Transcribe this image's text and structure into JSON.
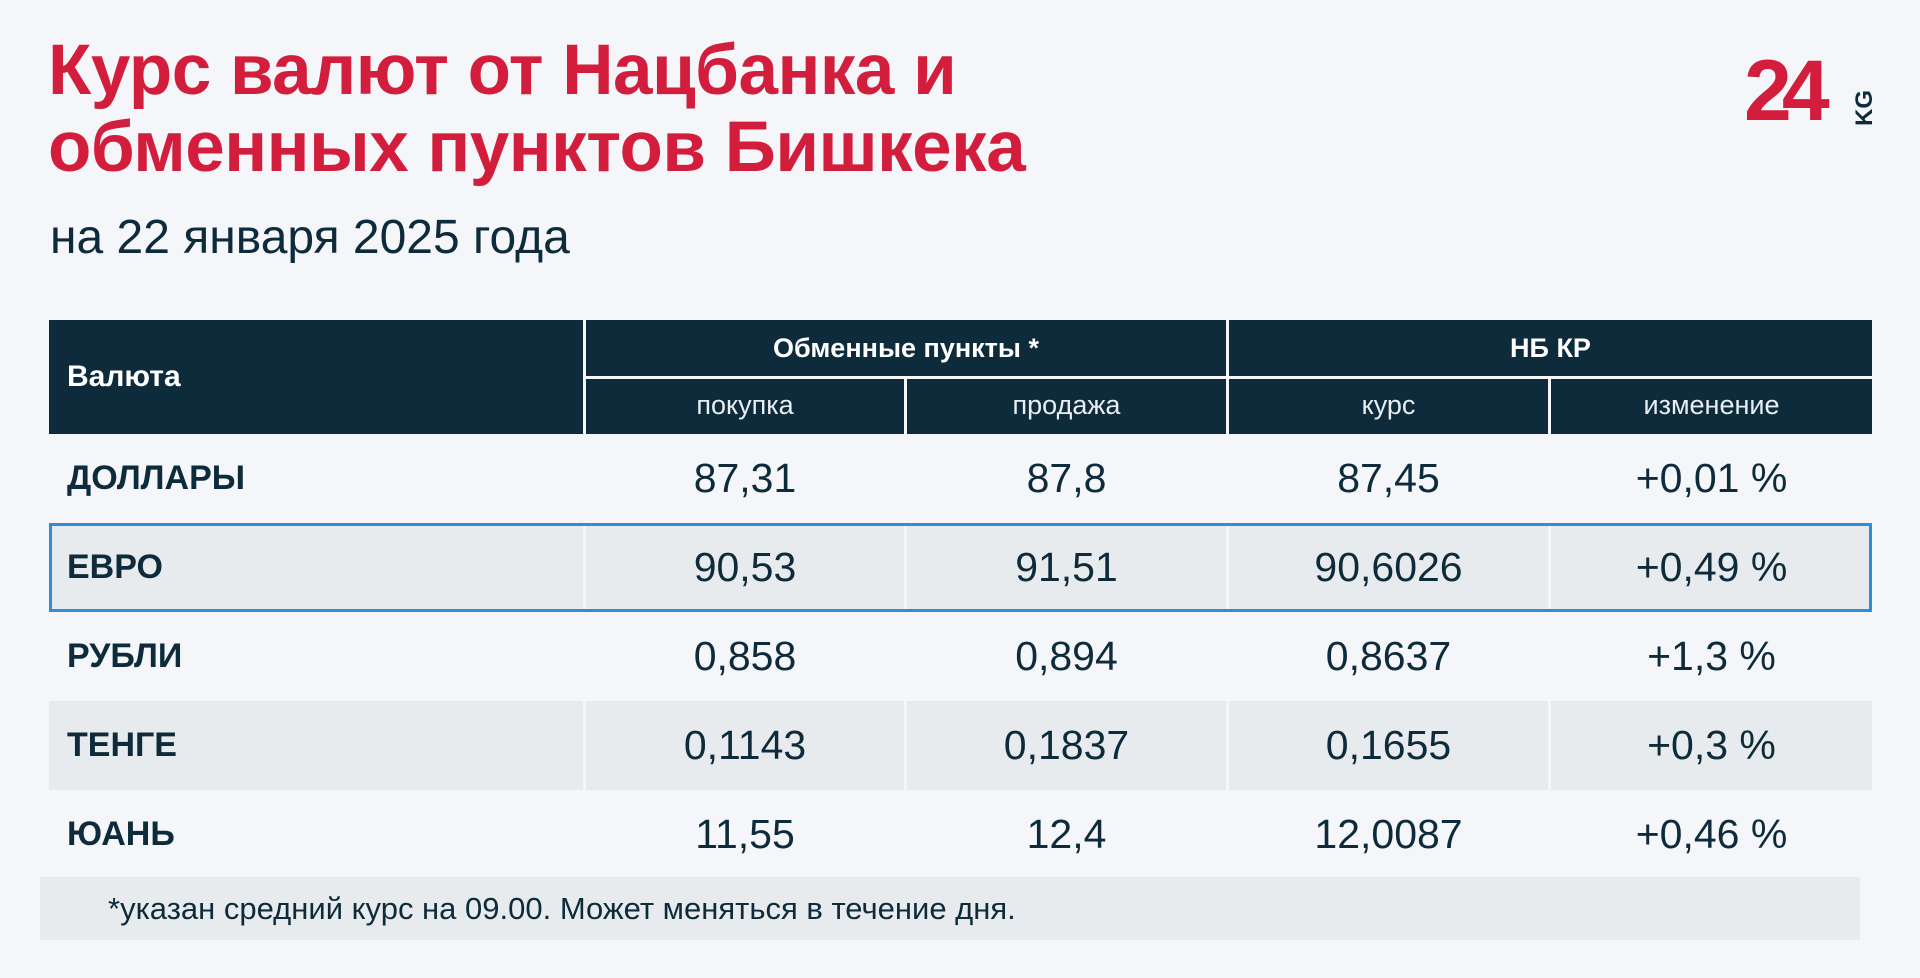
{
  "header": {
    "title_line1": "Курс валют от Нацбанка и",
    "title_line2": "обменных пунктов Бишкека",
    "subtitle": "на 22 января 2025 года"
  },
  "logo": {
    "icon": "24kg-logo",
    "text": "KG",
    "number": "24",
    "color": "#d21e3c",
    "text_color": "#0d2b3a"
  },
  "table": {
    "header": {
      "currency": "Валюта",
      "exchange_group": "Обменные пункты *",
      "nb_group": "НБ КР",
      "buy": "покупка",
      "sell": "продажа",
      "rate": "курс",
      "change": "изменение"
    },
    "rows": [
      {
        "name": "ДОЛЛАРЫ",
        "buy": "87,31",
        "sell": "87,8",
        "rate": "87,45",
        "change": "+0,01 %"
      },
      {
        "name": "ЕВРО",
        "buy": "90,53",
        "sell": "91,51",
        "rate": "90,6026",
        "change": "+0,49 %"
      },
      {
        "name": "РУБЛИ",
        "buy": "0,858",
        "sell": "0,894",
        "rate": "0,8637",
        "change": "+1,3 %"
      },
      {
        "name": "ТЕНГЕ",
        "buy": "0,1143",
        "sell": "0,1837",
        "rate": "0,1655",
        "change": "+0,3 %"
      },
      {
        "name": "ЮАНЬ",
        "buy": "11,55",
        "sell": "12,4",
        "rate": "12,0087",
        "change": "+0,46 %"
      }
    ],
    "highlighted_row": "ЕВРО"
  },
  "footnote": "*указан средний курс на 09.00. Может меняться в течение дня.",
  "colors": {
    "title": "#d21e3c",
    "header_bg": "#0d2b3a",
    "highlight_border": "#2f8fd6",
    "alt_row": "#e8ebee"
  }
}
